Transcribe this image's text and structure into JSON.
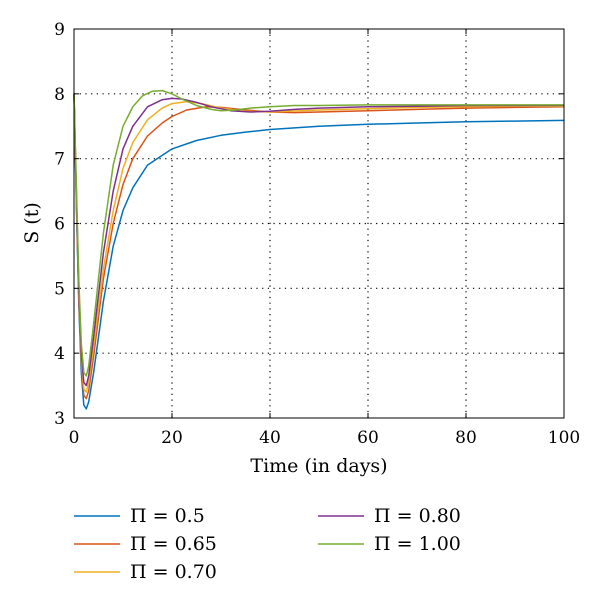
{
  "chart_data": {
    "type": "line",
    "xlabel": "Time (in days)",
    "ylabel": "S (t)",
    "xlim": [
      0,
      100
    ],
    "ylim": [
      3,
      9
    ],
    "x_ticks": [
      0,
      20,
      40,
      60,
      80,
      100
    ],
    "y_ticks": [
      3,
      4,
      5,
      6,
      7,
      8,
      9
    ],
    "grid": "dotted",
    "legend_position": "below",
    "series": [
      {
        "name": "Π = 0.5",
        "color": "#0072BD",
        "x": [
          0,
          0.5,
          1,
          1.5,
          2,
          2.5,
          3,
          4,
          5,
          6,
          8,
          10,
          12,
          15,
          20,
          25,
          30,
          35,
          40,
          50,
          60,
          70,
          80,
          90,
          100
        ],
        "y": [
          8.0,
          6.2,
          4.7,
          3.7,
          3.2,
          3.14,
          3.25,
          3.7,
          4.25,
          4.8,
          5.65,
          6.2,
          6.55,
          6.9,
          7.15,
          7.28,
          7.36,
          7.41,
          7.45,
          7.5,
          7.53,
          7.55,
          7.57,
          7.58,
          7.59
        ]
      },
      {
        "name": "Π = 0.65",
        "color": "#D95319",
        "x": [
          0,
          0.5,
          1,
          1.5,
          2,
          2.5,
          3,
          4,
          5,
          6,
          8,
          10,
          12,
          15,
          18,
          20,
          23,
          27,
          30,
          35,
          40,
          45,
          50,
          60,
          70,
          80,
          90,
          100
        ],
        "y": [
          8.0,
          6.3,
          4.8,
          3.85,
          3.35,
          3.3,
          3.42,
          3.95,
          4.55,
          5.15,
          6.0,
          6.6,
          7.0,
          7.35,
          7.55,
          7.65,
          7.75,
          7.8,
          7.79,
          7.75,
          7.72,
          7.71,
          7.72,
          7.74,
          7.76,
          7.78,
          7.79,
          7.8
        ]
      },
      {
        "name": "Π = 0.70",
        "color": "#EDB120",
        "x": [
          0,
          0.5,
          1,
          1.5,
          2,
          2.5,
          3,
          4,
          5,
          6,
          8,
          10,
          12,
          15,
          18,
          20,
          23,
          26,
          30,
          35,
          40,
          50,
          60,
          70,
          80,
          90,
          100
        ],
        "y": [
          8.0,
          6.35,
          4.85,
          3.9,
          3.45,
          3.4,
          3.55,
          4.1,
          4.7,
          5.3,
          6.2,
          6.85,
          7.25,
          7.6,
          7.78,
          7.85,
          7.88,
          7.85,
          7.78,
          7.73,
          7.72,
          7.75,
          7.77,
          7.79,
          7.8,
          7.81,
          7.81
        ]
      },
      {
        "name": "Π = 0.80",
        "color": "#7E2F8E",
        "x": [
          0,
          0.5,
          1,
          1.5,
          2,
          2.5,
          3,
          4,
          5,
          6,
          8,
          10,
          12,
          15,
          18,
          20,
          22,
          25,
          28,
          32,
          36,
          40,
          45,
          50,
          60,
          70,
          80,
          90,
          100
        ],
        "y": [
          8.0,
          6.4,
          4.95,
          4.0,
          3.55,
          3.5,
          3.65,
          4.25,
          4.9,
          5.55,
          6.5,
          7.15,
          7.5,
          7.8,
          7.91,
          7.93,
          7.92,
          7.87,
          7.8,
          7.74,
          7.72,
          7.73,
          7.76,
          7.78,
          7.8,
          7.81,
          7.82,
          7.82,
          7.82
        ]
      },
      {
        "name": "Π = 1.00",
        "color": "#77AC30",
        "x": [
          0,
          0.5,
          1,
          1.5,
          2,
          2.5,
          3,
          4,
          5,
          6,
          8,
          10,
          12,
          14,
          16,
          18,
          20,
          22,
          25,
          28,
          30,
          33,
          36,
          40,
          45,
          50,
          60,
          70,
          80,
          90,
          100
        ],
        "y": [
          8.0,
          6.5,
          5.1,
          4.15,
          3.7,
          3.65,
          3.8,
          4.45,
          5.15,
          5.85,
          6.9,
          7.5,
          7.8,
          7.97,
          8.04,
          8.05,
          8.0,
          7.92,
          7.82,
          7.76,
          7.74,
          7.75,
          7.78,
          7.8,
          7.82,
          7.82,
          7.83,
          7.83,
          7.83,
          7.83,
          7.83
        ]
      }
    ]
  }
}
